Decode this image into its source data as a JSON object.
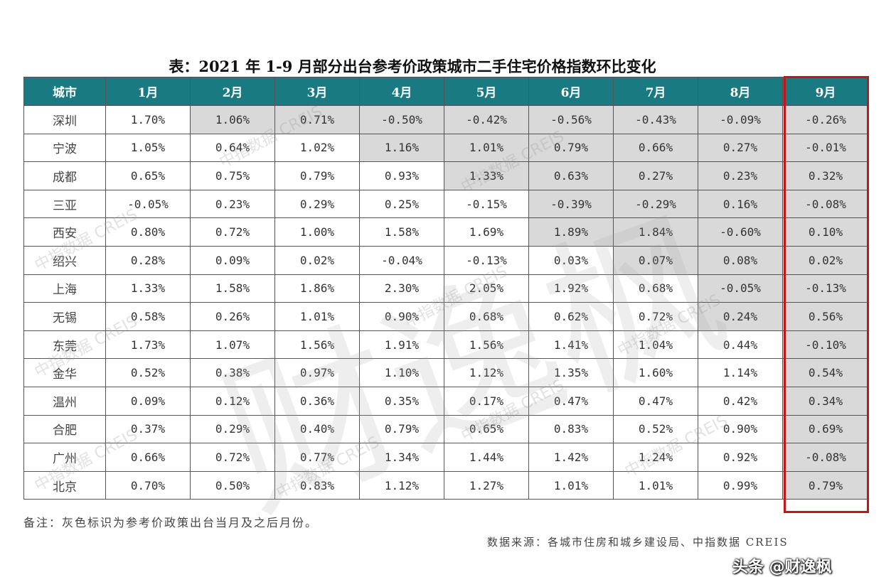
{
  "title": "表：2021 年 1-9 月部分出台参考价政策城市二手住宅价格指数环比变化",
  "table": {
    "headers": [
      "城市",
      "1月",
      "2月",
      "3月",
      "4月",
      "5月",
      "6月",
      "7月",
      "8月",
      "9月"
    ],
    "rows": [
      {
        "city": "深圳",
        "values": [
          "1.70%",
          "1.06%",
          "0.71%",
          "-0.50%",
          "-0.42%",
          "-0.56%",
          "-0.43%",
          "-0.09%",
          "-0.26%"
        ]
      },
      {
        "city": "宁波",
        "values": [
          "1.05%",
          "0.64%",
          "1.02%",
          "1.16%",
          "1.01%",
          "0.79%",
          "0.66%",
          "0.27%",
          "-0.01%"
        ]
      },
      {
        "city": "成都",
        "values": [
          "0.65%",
          "0.75%",
          "0.79%",
          "0.93%",
          "1.33%",
          "0.63%",
          "0.27%",
          "0.23%",
          "0.32%"
        ]
      },
      {
        "city": "三亚",
        "values": [
          "-0.05%",
          "0.23%",
          "0.29%",
          "0.25%",
          "-0.15%",
          "-0.39%",
          "-0.29%",
          "0.16%",
          "-0.08%"
        ]
      },
      {
        "city": "西安",
        "values": [
          "0.80%",
          "0.72%",
          "1.00%",
          "1.58%",
          "1.69%",
          "1.89%",
          "1.84%",
          "-0.60%",
          "0.10%"
        ]
      },
      {
        "city": "绍兴",
        "values": [
          "0.28%",
          "0.09%",
          "0.02%",
          "-0.04%",
          "-0.13%",
          "0.03%",
          "0.07%",
          "0.08%",
          "0.02%"
        ]
      },
      {
        "city": "上海",
        "values": [
          "1.33%",
          "1.58%",
          "1.86%",
          "2.30%",
          "2.05%",
          "1.92%",
          "0.68%",
          "-0.05%",
          "-0.13%"
        ]
      },
      {
        "city": "无锡",
        "values": [
          "0.58%",
          "0.26%",
          "1.01%",
          "0.90%",
          "0.68%",
          "0.62%",
          "0.72%",
          "0.24%",
          "0.56%"
        ]
      },
      {
        "city": "东莞",
        "values": [
          "1.73%",
          "1.07%",
          "1.56%",
          "1.91%",
          "1.56%",
          "1.41%",
          "1.04%",
          "0.44%",
          "-0.10%"
        ]
      },
      {
        "city": "金华",
        "values": [
          "0.52%",
          "0.38%",
          "0.97%",
          "1.10%",
          "1.12%",
          "1.35%",
          "1.60%",
          "1.14%",
          "0.54%"
        ]
      },
      {
        "city": "温州",
        "values": [
          "0.09%",
          "0.12%",
          "0.36%",
          "0.35%",
          "0.17%",
          "0.47%",
          "0.47%",
          "0.42%",
          "0.34%"
        ]
      },
      {
        "city": "合肥",
        "values": [
          "0.37%",
          "0.29%",
          "0.40%",
          "0.79%",
          "0.65%",
          "0.83%",
          "0.52%",
          "0.90%",
          "0.69%"
        ]
      },
      {
        "city": "广州",
        "values": [
          "0.66%",
          "0.72%",
          "0.77%",
          "1.34%",
          "1.44%",
          "1.42%",
          "1.24%",
          "0.92%",
          "-0.08%"
        ]
      },
      {
        "city": "北京",
        "values": [
          "0.70%",
          "0.50%",
          "0.83%",
          "1.12%",
          "1.27%",
          "1.01%",
          "1.01%",
          "0.99%",
          "0.79%"
        ]
      }
    ],
    "shaded_from_month": [
      2,
      4,
      5,
      6,
      6,
      7,
      8,
      8,
      9,
      9,
      9,
      9,
      9,
      9
    ]
  },
  "note": "备注：灰色标识为参考价政策出台当月及之后月份。",
  "source": "数据来源：各城市住房和城乡建设局、中指数据 CREIS",
  "watermark": "中指数据 CREIS",
  "badge": "头条 @财逸枫",
  "colors": {
    "header_bg": "#197a82",
    "highlight_border": "#c3161c",
    "shaded_cell": "#d9d9d9"
  }
}
